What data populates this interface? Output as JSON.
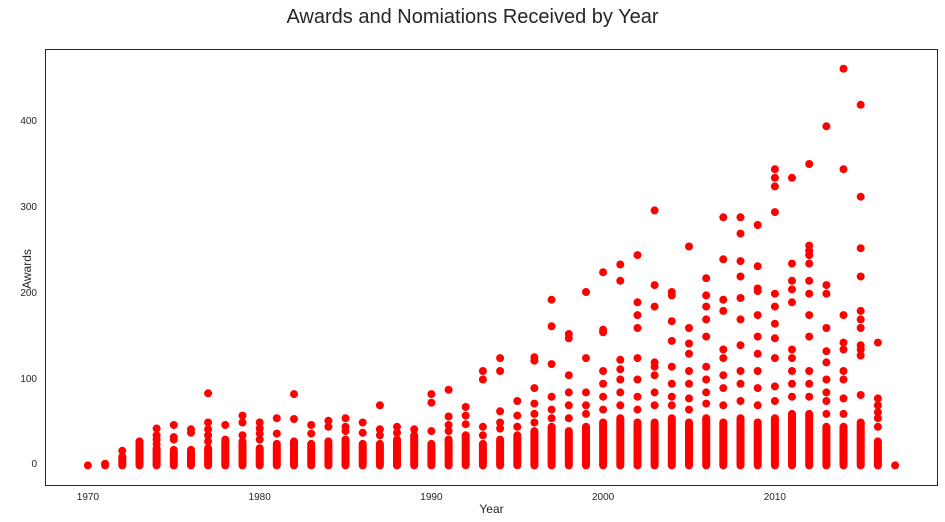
{
  "chart_data": {
    "type": "scatter",
    "title": "Awards and Nomiations Received by Year",
    "xlabel": "Year",
    "ylabel": "Awards",
    "xlim": [
      1967.5,
      2019.5
    ],
    "ylim": [
      -24,
      485
    ],
    "xticks": [
      1970,
      1980,
      1990,
      2000,
      2010
    ],
    "yticks": [
      0,
      100,
      200,
      300,
      400
    ],
    "grid": false,
    "legend": null,
    "marker_color": "#ff0000",
    "series": [
      {
        "name": "Awards",
        "columns": [
          {
            "year": 1970,
            "dense_max": 0,
            "outliers": []
          },
          {
            "year": 1971,
            "dense_max": 2,
            "outliers": []
          },
          {
            "year": 1972,
            "dense_max": 10,
            "outliers": [
              17
            ]
          },
          {
            "year": 1973,
            "dense_max": 28,
            "outliers": []
          },
          {
            "year": 1974,
            "dense_max": 20,
            "outliers": [
              25,
              30,
              35,
              43
            ]
          },
          {
            "year": 1975,
            "dense_max": 18,
            "outliers": [
              30,
              33,
              47
            ]
          },
          {
            "year": 1976,
            "dense_max": 18,
            "outliers": [
              38,
              42
            ]
          },
          {
            "year": 1977,
            "dense_max": 20,
            "outliers": [
              28,
              35,
              42,
              50,
              84
            ]
          },
          {
            "year": 1978,
            "dense_max": 30,
            "outliers": [
              47
            ]
          },
          {
            "year": 1979,
            "dense_max": 28,
            "outliers": [
              35,
              50,
              58
            ]
          },
          {
            "year": 1980,
            "dense_max": 20,
            "outliers": [
              30,
              37,
              43,
              50
            ]
          },
          {
            "year": 1981,
            "dense_max": 25,
            "outliers": [
              37,
              55
            ]
          },
          {
            "year": 1982,
            "dense_max": 28,
            "outliers": [
              54,
              83
            ]
          },
          {
            "year": 1983,
            "dense_max": 25,
            "outliers": [
              37,
              47
            ]
          },
          {
            "year": 1984,
            "dense_max": 28,
            "outliers": [
              45,
              52
            ]
          },
          {
            "year": 1985,
            "dense_max": 30,
            "outliers": [
              40,
              45,
              55
            ]
          },
          {
            "year": 1986,
            "dense_max": 25,
            "outliers": [
              38,
              50
            ]
          },
          {
            "year": 1987,
            "dense_max": 25,
            "outliers": [
              35,
              42,
              70
            ]
          },
          {
            "year": 1988,
            "dense_max": 30,
            "outliers": [
              38,
              45
            ]
          },
          {
            "year": 1989,
            "dense_max": 35,
            "outliers": [
              42
            ]
          },
          {
            "year": 1990,
            "dense_max": 25,
            "outliers": [
              40,
              73,
              83
            ]
          },
          {
            "year": 1991,
            "dense_max": 30,
            "outliers": [
              40,
              47,
              57,
              88
            ]
          },
          {
            "year": 1992,
            "dense_max": 35,
            "outliers": [
              48,
              58,
              68
            ]
          },
          {
            "year": 1993,
            "dense_max": 25,
            "outliers": [
              35,
              45,
              100,
              110
            ]
          },
          {
            "year": 1994,
            "dense_max": 30,
            "outliers": [
              43,
              50,
              63,
              110,
              125
            ]
          },
          {
            "year": 1995,
            "dense_max": 35,
            "outliers": [
              45,
              58,
              75
            ]
          },
          {
            "year": 1996,
            "dense_max": 40,
            "outliers": [
              50,
              60,
              72,
              90,
              122,
              126
            ]
          },
          {
            "year": 1997,
            "dense_max": 45,
            "outliers": [
              55,
              65,
              80,
              118,
              162,
              193
            ]
          },
          {
            "year": 1998,
            "dense_max": 40,
            "outliers": [
              55,
              70,
              85,
              105,
              148,
              153
            ]
          },
          {
            "year": 1999,
            "dense_max": 45,
            "outliers": [
              60,
              70,
              85,
              125,
              202
            ]
          },
          {
            "year": 2000,
            "dense_max": 50,
            "outliers": [
              65,
              80,
              95,
              110,
              155,
              158,
              225
            ]
          },
          {
            "year": 2001,
            "dense_max": 55,
            "outliers": [
              70,
              85,
              100,
              112,
              123,
              215,
              234
            ]
          },
          {
            "year": 2002,
            "dense_max": 50,
            "outliers": [
              65,
              80,
              100,
              125,
              160,
              175,
              190,
              245
            ]
          },
          {
            "year": 2003,
            "dense_max": 50,
            "outliers": [
              70,
              85,
              105,
              115,
              120,
              185,
              210,
              297
            ]
          },
          {
            "year": 2004,
            "dense_max": 55,
            "outliers": [
              70,
              80,
              95,
              115,
              145,
              168,
              198,
              202
            ]
          },
          {
            "year": 2005,
            "dense_max": 50,
            "outliers": [
              65,
              78,
              95,
              110,
              130,
              142,
              160,
              255
            ]
          },
          {
            "year": 2006,
            "dense_max": 55,
            "outliers": [
              72,
              85,
              100,
              115,
              150,
              170,
              185,
              198,
              218
            ]
          },
          {
            "year": 2007,
            "dense_max": 50,
            "outliers": [
              70,
              90,
              105,
              125,
              135,
              180,
              193,
              240,
              289
            ]
          },
          {
            "year": 2008,
            "dense_max": 55,
            "outliers": [
              75,
              95,
              110,
              140,
              170,
              195,
              220,
              238,
              270,
              289
            ]
          },
          {
            "year": 2009,
            "dense_max": 50,
            "outliers": [
              70,
              90,
              110,
              130,
              150,
              175,
              203,
              206,
              232,
              280
            ]
          },
          {
            "year": 2010,
            "dense_max": 55,
            "outliers": [
              75,
              92,
              125,
              148,
              165,
              185,
              200,
              295,
              325,
              335,
              345
            ]
          },
          {
            "year": 2011,
            "dense_max": 60,
            "outliers": [
              80,
              95,
              110,
              125,
              135,
              190,
              205,
              215,
              235,
              335
            ]
          },
          {
            "year": 2012,
            "dense_max": 60,
            "outliers": [
              80,
              95,
              110,
              150,
              175,
              200,
              215,
              235,
              245,
              250,
              256,
              351
            ]
          },
          {
            "year": 2013,
            "dense_max": 45,
            "outliers": [
              60,
              75,
              85,
              100,
              120,
              133,
              160,
              200,
              210,
              395
            ]
          },
          {
            "year": 2014,
            "dense_max": 45,
            "outliers": [
              60,
              78,
              100,
              110,
              135,
              143,
              175,
              345,
              462
            ]
          },
          {
            "year": 2015,
            "dense_max": 50,
            "outliers": [
              82,
              128,
              135,
              140,
              160,
              170,
              180,
              220,
              253,
              313,
              420
            ]
          },
          {
            "year": 2016,
            "dense_max": 28,
            "outliers": [
              45,
              55,
              62,
              70,
              78,
              143
            ]
          },
          {
            "year": 2017,
            "dense_max": 0,
            "outliers": []
          }
        ]
      }
    ]
  }
}
